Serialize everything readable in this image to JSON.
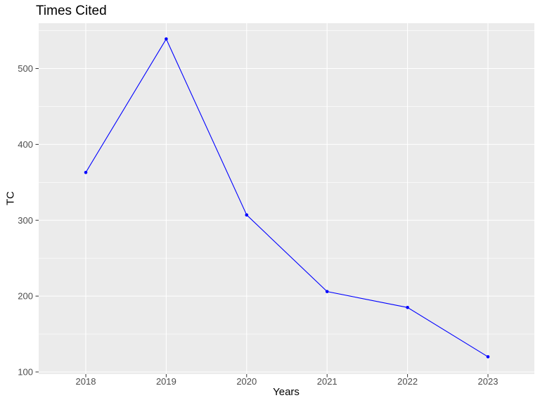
{
  "title": "Times Cited",
  "chart_data": {
    "type": "line",
    "title": "Times Cited",
    "xlabel": "Years",
    "ylabel": "TC",
    "x": [
      2018,
      2019,
      2020,
      2021,
      2022,
      2023
    ],
    "series": [
      {
        "name": "TC",
        "values": [
          363,
          539,
          307,
          206,
          185,
          120
        ]
      }
    ],
    "yticks": [
      100,
      200,
      300,
      400,
      500
    ],
    "ylim": [
      98,
      560
    ],
    "grid": true,
    "minor_grid": "horizontal-only",
    "legend": false,
    "colors": {
      "line": "#0000FF",
      "point": "#0000FF",
      "panel_background": "#EBEBEB",
      "gridline": "#FFFFFF",
      "tick_mark": "#333333",
      "tick_label": "#4D4D4D",
      "title_text": "#000000",
      "axis_title_text": "#000000",
      "figure_background": "#FFFFFF"
    }
  }
}
